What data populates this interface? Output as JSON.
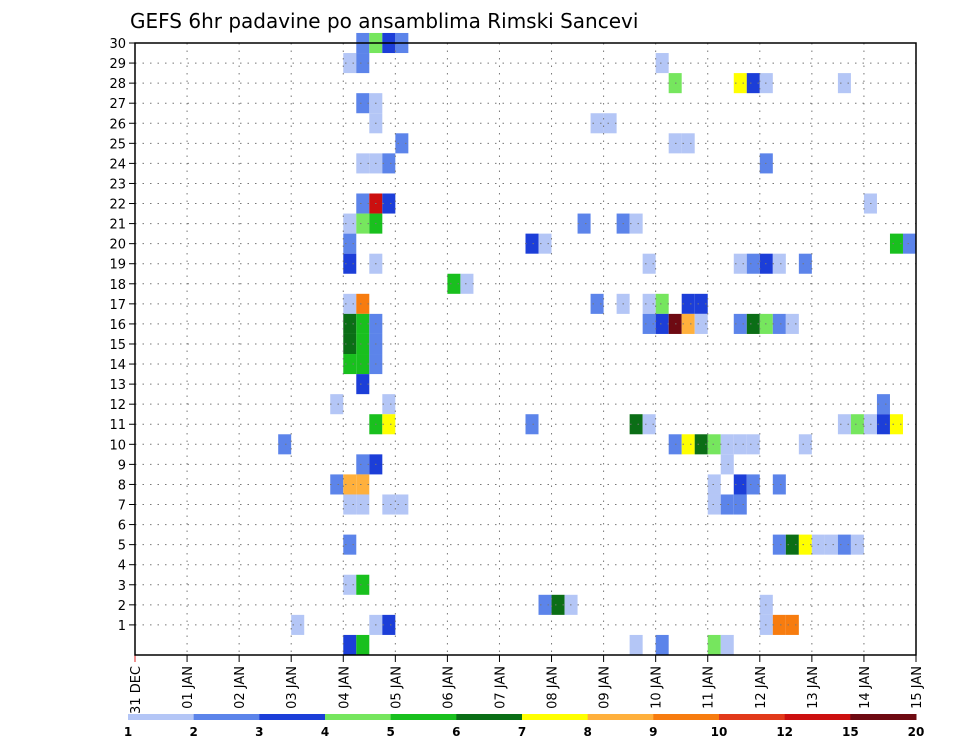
{
  "chart_data": {
    "type": "heatmap",
    "title": "GEFS 6hr padavine po ansamblima Rimski Sancevi",
    "xlabel": "",
    "ylabel": "",
    "x_ticks": [
      "31 DEC",
      "01 JAN",
      "02 JAN",
      "03 JAN",
      "04 JAN",
      "05 JAN",
      "06 JAN",
      "07 JAN",
      "08 JAN",
      "09 JAN",
      "10 JAN",
      "11 JAN",
      "12 JAN",
      "13 JAN",
      "14 JAN",
      "15 JAN"
    ],
    "xlim_days": [
      0,
      15
    ],
    "step_hours": 6,
    "y_ticks": [
      1,
      2,
      3,
      4,
      5,
      6,
      7,
      8,
      9,
      10,
      11,
      12,
      13,
      14,
      15,
      16,
      17,
      18,
      19,
      20,
      21,
      22,
      23,
      24,
      25,
      26,
      27,
      28,
      29,
      30
    ],
    "ylim": [
      0,
      30
    ],
    "grid": true,
    "legend": {
      "position": "bottom",
      "levels": [
        "1",
        "2",
        "3",
        "4",
        "5",
        "6",
        "7",
        "8",
        "9",
        "10",
        "12",
        "15",
        "20"
      ],
      "colors": [
        "#b4c6f6",
        "#5c84ea",
        "#1c3ed8",
        "#76e65e",
        "#19c01e",
        "#0b6e16",
        "#ffff00",
        "#ffb03c",
        "#f77c0f",
        "#e23a1a",
        "#cc0f0f",
        "#6e0a12"
      ]
    },
    "cells": [
      {
        "day": 4.25,
        "member": 30,
        "color": 2
      },
      {
        "day": 4.5,
        "member": 30,
        "color": 4
      },
      {
        "day": 4.75,
        "member": 30,
        "color": 3
      },
      {
        "day": 5.0,
        "member": 30,
        "color": 2
      },
      {
        "day": 4.0,
        "member": 29,
        "color": 1
      },
      {
        "day": 4.25,
        "member": 29,
        "color": 2
      },
      {
        "day": 10.0,
        "member": 29,
        "color": 1
      },
      {
        "day": 10.25,
        "member": 28,
        "color": 4
      },
      {
        "day": 11.5,
        "member": 28,
        "color": 7
      },
      {
        "day": 11.75,
        "member": 28,
        "color": 3
      },
      {
        "day": 12.0,
        "member": 28,
        "color": 1
      },
      {
        "day": 13.5,
        "member": 28,
        "color": 1
      },
      {
        "day": 4.25,
        "member": 27,
        "color": 2
      },
      {
        "day": 4.5,
        "member": 27,
        "color": 1
      },
      {
        "day": 4.5,
        "member": 26,
        "color": 1
      },
      {
        "day": 8.75,
        "member": 26,
        "color": 1
      },
      {
        "day": 9.0,
        "member": 26,
        "color": 1
      },
      {
        "day": 5.0,
        "member": 25,
        "color": 2
      },
      {
        "day": 10.25,
        "member": 25,
        "color": 1
      },
      {
        "day": 10.5,
        "member": 25,
        "color": 1
      },
      {
        "day": 4.25,
        "member": 24,
        "color": 1
      },
      {
        "day": 4.5,
        "member": 24,
        "color": 1
      },
      {
        "day": 4.75,
        "member": 24,
        "color": 2
      },
      {
        "day": 12.0,
        "member": 24,
        "color": 2
      },
      {
        "day": 4.25,
        "member": 22,
        "color": 2
      },
      {
        "day": 4.5,
        "member": 22,
        "color": 11
      },
      {
        "day": 4.75,
        "member": 22,
        "color": 3
      },
      {
        "day": 14.0,
        "member": 22,
        "color": 1
      },
      {
        "day": 4.0,
        "member": 21,
        "color": 1
      },
      {
        "day": 4.25,
        "member": 21,
        "color": 4
      },
      {
        "day": 4.5,
        "member": 21,
        "color": 5
      },
      {
        "day": 8.5,
        "member": 21,
        "color": 2
      },
      {
        "day": 9.25,
        "member": 21,
        "color": 2
      },
      {
        "day": 9.5,
        "member": 21,
        "color": 1
      },
      {
        "day": 4.0,
        "member": 20,
        "color": 2
      },
      {
        "day": 7.5,
        "member": 20,
        "color": 3
      },
      {
        "day": 7.75,
        "member": 20,
        "color": 1
      },
      {
        "day": 14.5,
        "member": 20,
        "color": 5
      },
      {
        "day": 14.75,
        "member": 20,
        "color": 2
      },
      {
        "day": 4.0,
        "member": 19,
        "color": 3
      },
      {
        "day": 4.5,
        "member": 19,
        "color": 1
      },
      {
        "day": 9.75,
        "member": 19,
        "color": 1
      },
      {
        "day": 11.5,
        "member": 19,
        "color": 1
      },
      {
        "day": 11.75,
        "member": 19,
        "color": 2
      },
      {
        "day": 12.0,
        "member": 19,
        "color": 3
      },
      {
        "day": 12.25,
        "member": 19,
        "color": 1
      },
      {
        "day": 12.75,
        "member": 19,
        "color": 2
      },
      {
        "day": 6.0,
        "member": 18,
        "color": 5
      },
      {
        "day": 6.25,
        "member": 18,
        "color": 1
      },
      {
        "day": 4.0,
        "member": 17,
        "color": 1
      },
      {
        "day": 4.25,
        "member": 17,
        "color": 9
      },
      {
        "day": 8.75,
        "member": 17,
        "color": 2
      },
      {
        "day": 9.25,
        "member": 17,
        "color": 1
      },
      {
        "day": 9.75,
        "member": 17,
        "color": 1
      },
      {
        "day": 10.0,
        "member": 17,
        "color": 4
      },
      {
        "day": 10.5,
        "member": 17,
        "color": 3
      },
      {
        "day": 10.75,
        "member": 17,
        "color": 3
      },
      {
        "day": 4.0,
        "member": 16,
        "color": 6
      },
      {
        "day": 4.25,
        "member": 16,
        "color": 5
      },
      {
        "day": 4.5,
        "member": 16,
        "color": 2
      },
      {
        "day": 9.75,
        "member": 16,
        "color": 2
      },
      {
        "day": 10.0,
        "member": 16,
        "color": 3
      },
      {
        "day": 10.25,
        "member": 16,
        "color": 12
      },
      {
        "day": 10.5,
        "member": 16,
        "color": 8
      },
      {
        "day": 10.75,
        "member": 16,
        "color": 1
      },
      {
        "day": 11.5,
        "member": 16,
        "color": 2
      },
      {
        "day": 11.75,
        "member": 16,
        "color": 6
      },
      {
        "day": 12.0,
        "member": 16,
        "color": 4
      },
      {
        "day": 12.25,
        "member": 16,
        "color": 2
      },
      {
        "day": 12.5,
        "member": 16,
        "color": 1
      },
      {
        "day": 4.0,
        "member": 15,
        "color": 6
      },
      {
        "day": 4.25,
        "member": 15,
        "color": 5
      },
      {
        "day": 4.5,
        "member": 15,
        "color": 2
      },
      {
        "day": 4.0,
        "member": 14,
        "color": 5
      },
      {
        "day": 4.25,
        "member": 14,
        "color": 5
      },
      {
        "day": 4.5,
        "member": 14,
        "color": 2
      },
      {
        "day": 4.25,
        "member": 13,
        "color": 3
      },
      {
        "day": 3.75,
        "member": 12,
        "color": 1
      },
      {
        "day": 4.75,
        "member": 12,
        "color": 1
      },
      {
        "day": 14.25,
        "member": 12,
        "color": 2
      },
      {
        "day": 4.5,
        "member": 11,
        "color": 5
      },
      {
        "day": 4.75,
        "member": 11,
        "color": 7
      },
      {
        "day": 7.5,
        "member": 11,
        "color": 2
      },
      {
        "day": 9.5,
        "member": 11,
        "color": 6
      },
      {
        "day": 9.75,
        "member": 11,
        "color": 1
      },
      {
        "day": 13.5,
        "member": 11,
        "color": 1
      },
      {
        "day": 13.75,
        "member": 11,
        "color": 4
      },
      {
        "day": 14.0,
        "member": 11,
        "color": 1
      },
      {
        "day": 14.25,
        "member": 11,
        "color": 3
      },
      {
        "day": 14.5,
        "member": 11,
        "color": 7
      },
      {
        "day": 2.75,
        "member": 10,
        "color": 2
      },
      {
        "day": 10.25,
        "member": 10,
        "color": 2
      },
      {
        "day": 10.5,
        "member": 10,
        "color": 7
      },
      {
        "day": 10.75,
        "member": 10,
        "color": 6
      },
      {
        "day": 11.0,
        "member": 10,
        "color": 4
      },
      {
        "day": 11.25,
        "member": 10,
        "color": 1
      },
      {
        "day": 11.5,
        "member": 10,
        "color": 1
      },
      {
        "day": 11.75,
        "member": 10,
        "color": 1
      },
      {
        "day": 12.75,
        "member": 10,
        "color": 1
      },
      {
        "day": 4.25,
        "member": 9,
        "color": 2
      },
      {
        "day": 4.5,
        "member": 9,
        "color": 3
      },
      {
        "day": 11.25,
        "member": 9,
        "color": 1
      },
      {
        "day": 3.75,
        "member": 8,
        "color": 2
      },
      {
        "day": 4.0,
        "member": 8,
        "color": 8
      },
      {
        "day": 4.25,
        "member": 8,
        "color": 8
      },
      {
        "day": 11.0,
        "member": 8,
        "color": 1
      },
      {
        "day": 11.5,
        "member": 8,
        "color": 3
      },
      {
        "day": 11.75,
        "member": 8,
        "color": 2
      },
      {
        "day": 12.25,
        "member": 8,
        "color": 2
      },
      {
        "day": 4.0,
        "member": 7,
        "color": 1
      },
      {
        "day": 4.25,
        "member": 7,
        "color": 1
      },
      {
        "day": 4.75,
        "member": 7,
        "color": 1
      },
      {
        "day": 5.0,
        "member": 7,
        "color": 1
      },
      {
        "day": 11.0,
        "member": 7,
        "color": 1
      },
      {
        "day": 11.25,
        "member": 7,
        "color": 2
      },
      {
        "day": 11.5,
        "member": 7,
        "color": 2
      },
      {
        "day": 4.0,
        "member": 5,
        "color": 2
      },
      {
        "day": 12.25,
        "member": 5,
        "color": 2
      },
      {
        "day": 12.5,
        "member": 5,
        "color": 6
      },
      {
        "day": 12.75,
        "member": 5,
        "color": 7
      },
      {
        "day": 13.0,
        "member": 5,
        "color": 1
      },
      {
        "day": 13.25,
        "member": 5,
        "color": 1
      },
      {
        "day": 13.5,
        "member": 5,
        "color": 2
      },
      {
        "day": 13.75,
        "member": 5,
        "color": 1
      },
      {
        "day": 4.0,
        "member": 3,
        "color": 1
      },
      {
        "day": 4.25,
        "member": 3,
        "color": 5
      },
      {
        "day": 7.75,
        "member": 2,
        "color": 2
      },
      {
        "day": 8.0,
        "member": 2,
        "color": 6
      },
      {
        "day": 8.25,
        "member": 2,
        "color": 1
      },
      {
        "day": 12.0,
        "member": 2,
        "color": 1
      },
      {
        "day": 3.0,
        "member": 1,
        "color": 1
      },
      {
        "day": 4.5,
        "member": 1,
        "color": 1
      },
      {
        "day": 4.75,
        "member": 1,
        "color": 3
      },
      {
        "day": 12.0,
        "member": 1,
        "color": 1
      },
      {
        "day": 12.25,
        "member": 1,
        "color": 9
      },
      {
        "day": 12.5,
        "member": 1,
        "color": 9
      },
      {
        "day": 4.0,
        "member": 0,
        "color": 3
      },
      {
        "day": 4.25,
        "member": 0,
        "color": 5
      },
      {
        "day": 9.5,
        "member": 0,
        "color": 1
      },
      {
        "day": 10.0,
        "member": 0,
        "color": 2
      },
      {
        "day": 11.0,
        "member": 0,
        "color": 4
      },
      {
        "day": 11.25,
        "member": 0,
        "color": 1
      }
    ]
  }
}
